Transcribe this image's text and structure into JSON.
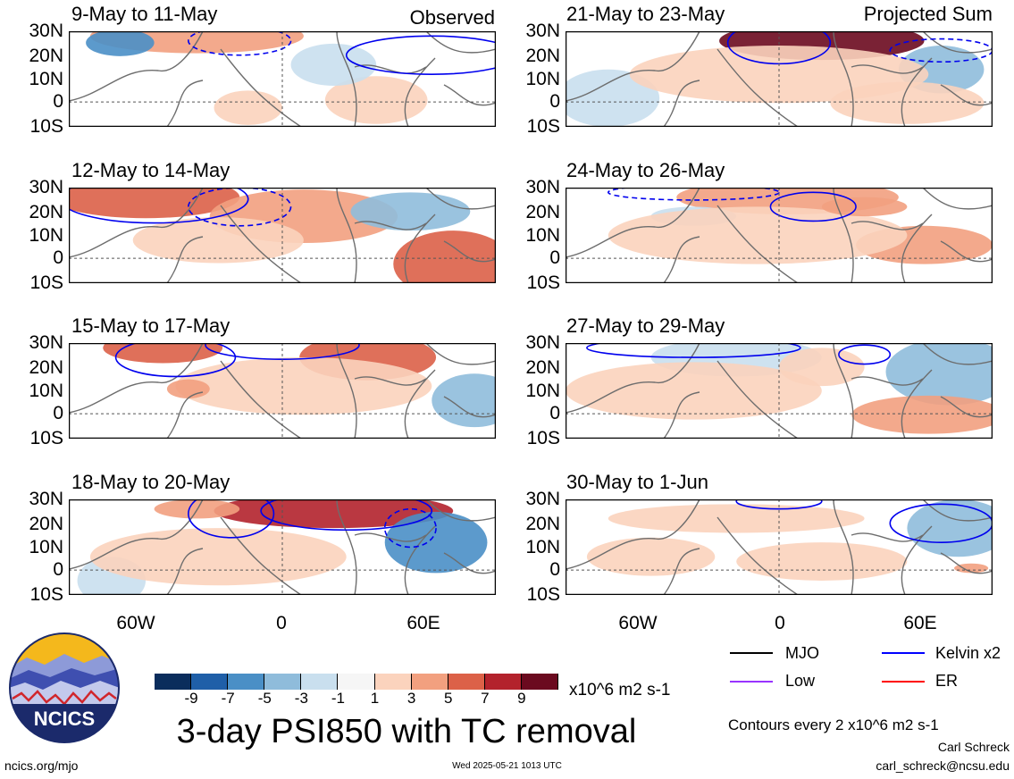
{
  "corner_labels": {
    "observed": "Observed",
    "projected": "Projected Sum"
  },
  "chart_data": {
    "type": "heatmap",
    "title": "3-day PSI850 with TC removal",
    "units": "x10^6 m2 s-1",
    "lat_labels": [
      "30N",
      "20N",
      "10N",
      "0",
      "10S"
    ],
    "lon_labels": [
      "60W",
      "0",
      "60E"
    ],
    "colorbar": {
      "ticks": [
        "-9",
        "-7",
        "-5",
        "-3",
        "-1",
        "1",
        "3",
        "5",
        "7",
        "9"
      ],
      "colors": [
        "#0a2d5c",
        "#1f5fa8",
        "#4a8fc6",
        "#8fbcdb",
        "#c9dfee",
        "#f6f6f6",
        "#fbd3bd",
        "#f2a07f",
        "#dc6148",
        "#b3222c",
        "#6b0a1f"
      ]
    },
    "panels": [
      {
        "column": "Observed",
        "period": "9-May to 11-May"
      },
      {
        "column": "Observed",
        "period": "12-May to 14-May"
      },
      {
        "column": "Observed",
        "period": "15-May to 17-May"
      },
      {
        "column": "Observed",
        "period": "18-May to 20-May"
      },
      {
        "column": "Projected Sum",
        "period": "21-May to 23-May"
      },
      {
        "column": "Projected Sum",
        "period": "24-May to 26-May"
      },
      {
        "column": "Projected Sum",
        "period": "27-May to 29-May"
      },
      {
        "column": "Projected Sum",
        "period": "30-May to 1-Jun"
      }
    ],
    "legend": [
      {
        "name": "MJO",
        "color": "#000000"
      },
      {
        "name": "Kelvin x2",
        "color": "#0000ff"
      },
      {
        "name": "Low",
        "color": "#9933ff"
      },
      {
        "name": "ER",
        "color": "#ff0000"
      }
    ],
    "contour_note": "Contours every 2 x10^6 m2 s-1"
  },
  "footer": {
    "logo_text": "NCICS",
    "url": "ncics.org/mjo",
    "timestamp": "Wed 2025-05-21 1013 UTC",
    "author": "Carl Schreck",
    "email": "carl_schreck@ncsu.edu"
  }
}
